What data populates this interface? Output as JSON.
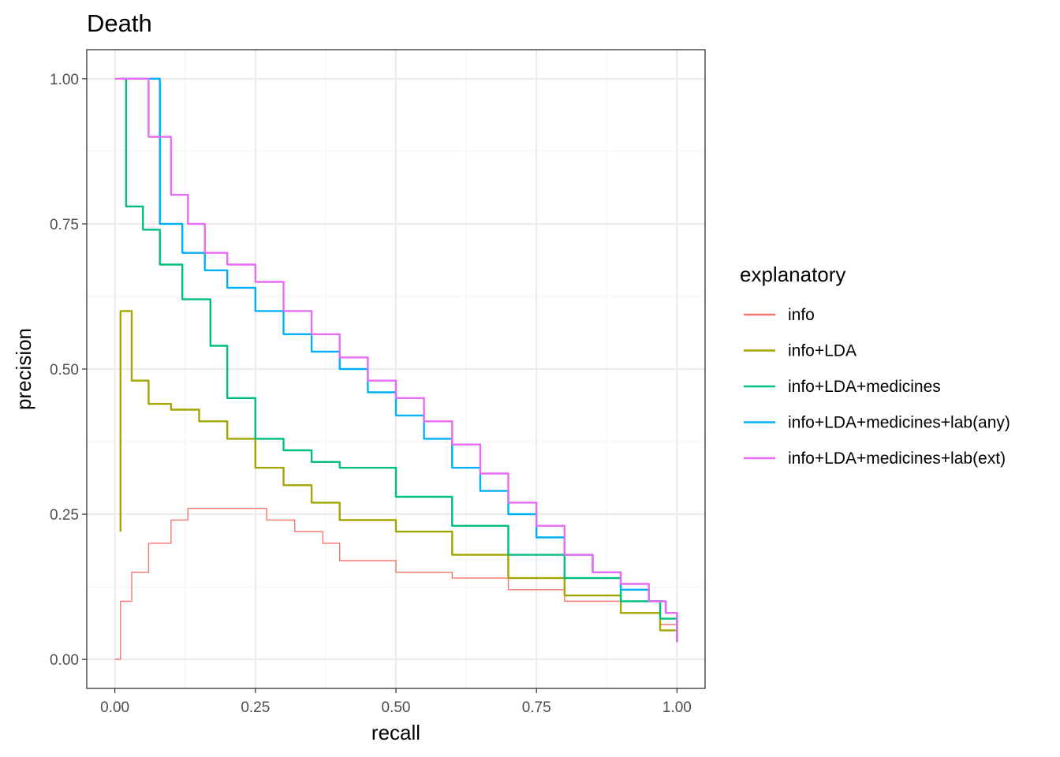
{
  "chart_data": {
    "type": "line",
    "title": "Death",
    "xlabel": "recall",
    "ylabel": "precision",
    "xlim": [
      -0.05,
      1.05
    ],
    "ylim": [
      -0.05,
      1.05
    ],
    "x_ticks": [
      0,
      0.25,
      0.5,
      0.75,
      1
    ],
    "x_tick_labels": [
      "0.00",
      "0.25",
      "0.50",
      "0.75",
      "1.00"
    ],
    "y_ticks": [
      0,
      0.25,
      0.5,
      0.75,
      1
    ],
    "y_tick_labels": [
      "0.00",
      "0.25",
      "0.50",
      "0.75",
      "1.00"
    ],
    "grid": true,
    "legend": {
      "title": "explanatory",
      "placement": "right"
    },
    "series": [
      {
        "name": "info",
        "color": "#F8766D",
        "points": [
          [
            0,
            0
          ],
          [
            0.01,
            0.1
          ],
          [
            0.03,
            0.15
          ],
          [
            0.06,
            0.2
          ],
          [
            0.1,
            0.24
          ],
          [
            0.13,
            0.26
          ],
          [
            0.17,
            0.26
          ],
          [
            0.22,
            0.26
          ],
          [
            0.27,
            0.24
          ],
          [
            0.32,
            0.22
          ],
          [
            0.37,
            0.2
          ],
          [
            0.4,
            0.17
          ],
          [
            0.5,
            0.15
          ],
          [
            0.6,
            0.14
          ],
          [
            0.7,
            0.12
          ],
          [
            0.8,
            0.1
          ],
          [
            0.9,
            0.08
          ],
          [
            0.97,
            0.06
          ],
          [
            1.0,
            0.04
          ]
        ]
      },
      {
        "name": "info+LDA",
        "color": "#A3A500",
        "points": [
          [
            0.01,
            0.22
          ],
          [
            0.01,
            0.6
          ],
          [
            0.03,
            0.48
          ],
          [
            0.06,
            0.44
          ],
          [
            0.1,
            0.43
          ],
          [
            0.15,
            0.41
          ],
          [
            0.2,
            0.38
          ],
          [
            0.25,
            0.33
          ],
          [
            0.3,
            0.3
          ],
          [
            0.35,
            0.27
          ],
          [
            0.4,
            0.24
          ],
          [
            0.5,
            0.22
          ],
          [
            0.6,
            0.18
          ],
          [
            0.7,
            0.14
          ],
          [
            0.8,
            0.11
          ],
          [
            0.9,
            0.08
          ],
          [
            0.97,
            0.05
          ],
          [
            1.0,
            0.03
          ]
        ]
      },
      {
        "name": "info+LDA+medicines",
        "color": "#00BF7D",
        "points": [
          [
            0.01,
            1.0
          ],
          [
            0.02,
            0.78
          ],
          [
            0.05,
            0.74
          ],
          [
            0.08,
            0.68
          ],
          [
            0.12,
            0.62
          ],
          [
            0.17,
            0.54
          ],
          [
            0.2,
            0.45
          ],
          [
            0.25,
            0.38
          ],
          [
            0.3,
            0.36
          ],
          [
            0.35,
            0.34
          ],
          [
            0.4,
            0.33
          ],
          [
            0.5,
            0.28
          ],
          [
            0.6,
            0.23
          ],
          [
            0.7,
            0.18
          ],
          [
            0.8,
            0.14
          ],
          [
            0.9,
            0.1
          ],
          [
            0.97,
            0.07
          ],
          [
            1.0,
            0.03
          ]
        ]
      },
      {
        "name": "info+LDA+medicines+lab(any)",
        "color": "#00B0F6",
        "points": [
          [
            0.01,
            1.0
          ],
          [
            0.08,
            1.0
          ],
          [
            0.08,
            0.75
          ],
          [
            0.12,
            0.7
          ],
          [
            0.16,
            0.67
          ],
          [
            0.2,
            0.64
          ],
          [
            0.25,
            0.6
          ],
          [
            0.3,
            0.56
          ],
          [
            0.35,
            0.53
          ],
          [
            0.4,
            0.5
          ],
          [
            0.45,
            0.46
          ],
          [
            0.5,
            0.42
          ],
          [
            0.55,
            0.38
          ],
          [
            0.6,
            0.33
          ],
          [
            0.65,
            0.29
          ],
          [
            0.7,
            0.25
          ],
          [
            0.75,
            0.21
          ],
          [
            0.8,
            0.18
          ],
          [
            0.85,
            0.15
          ],
          [
            0.9,
            0.12
          ],
          [
            0.95,
            0.1
          ],
          [
            0.98,
            0.08
          ],
          [
            1.0,
            0.03
          ]
        ]
      },
      {
        "name": "info+LDA+medicines+lab(ext)",
        "color": "#E76BF3",
        "points": [
          [
            0,
            1.0
          ],
          [
            0.06,
            1.0
          ],
          [
            0.06,
            0.9
          ],
          [
            0.1,
            0.8
          ],
          [
            0.13,
            0.75
          ],
          [
            0.16,
            0.7
          ],
          [
            0.2,
            0.68
          ],
          [
            0.25,
            0.65
          ],
          [
            0.3,
            0.6
          ],
          [
            0.35,
            0.56
          ],
          [
            0.4,
            0.52
          ],
          [
            0.45,
            0.48
          ],
          [
            0.5,
            0.45
          ],
          [
            0.55,
            0.41
          ],
          [
            0.6,
            0.37
          ],
          [
            0.65,
            0.32
          ],
          [
            0.7,
            0.27
          ],
          [
            0.75,
            0.23
          ],
          [
            0.8,
            0.18
          ],
          [
            0.85,
            0.15
          ],
          [
            0.9,
            0.13
          ],
          [
            0.95,
            0.1
          ],
          [
            0.98,
            0.08
          ],
          [
            1.0,
            0.03
          ]
        ]
      }
    ]
  }
}
